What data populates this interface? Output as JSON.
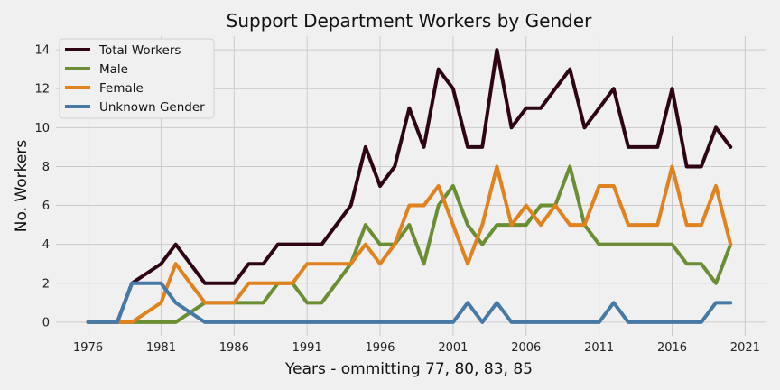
{
  "chart_data": {
    "type": "line",
    "title": "Support Department Workers by Gender",
    "xlabel": "Years - ommitting 77, 80, 83, 85",
    "ylabel": "No. Workers",
    "xlim": [
      1973.8,
      2022.4
    ],
    "ylim": [
      -0.7,
      14.7
    ],
    "x_ticks": [
      1976,
      1981,
      1986,
      1991,
      1996,
      2001,
      2006,
      2011,
      2016,
      2021
    ],
    "y_ticks": [
      0,
      2,
      4,
      6,
      8,
      10,
      12,
      14
    ],
    "grid": true,
    "legend_position": "top-left",
    "x": [
      1976,
      1977,
      1978,
      1979,
      1980,
      1981,
      1982,
      1983,
      1984,
      1985,
      1986,
      1987,
      1988,
      1989,
      1990,
      1991,
      1992,
      1993,
      1994,
      1995,
      1996,
      1997,
      1998,
      1999,
      2000,
      2001,
      2002,
      2003,
      2004,
      2005,
      2006,
      2007,
      2008,
      2009,
      2010,
      2011,
      2012,
      2013,
      2014,
      2015,
      2016,
      2017,
      2018,
      2019,
      2020
    ],
    "series": [
      {
        "name": "Total Workers",
        "color": "#2e0613",
        "values": [
          0,
          0,
          0,
          2,
          2.5,
          3,
          4,
          3,
          2,
          2,
          2,
          3,
          3,
          4,
          4,
          4,
          4,
          5,
          6,
          9,
          7,
          8,
          11,
          9,
          13,
          12,
          9,
          9,
          14,
          10,
          11,
          11,
          12,
          13,
          10,
          11,
          12,
          9,
          9,
          9,
          12,
          8,
          8,
          10,
          9
        ]
      },
      {
        "name": "Male",
        "color": "#6b8e35",
        "values": [
          0,
          0,
          0,
          0,
          0,
          0,
          0,
          0.5,
          1,
          1,
          1,
          1,
          1,
          2,
          2,
          1,
          1,
          2,
          3,
          5,
          4,
          4,
          5,
          3,
          6,
          7,
          5,
          4,
          5,
          5,
          5,
          6,
          6,
          8,
          5,
          4,
          4,
          4,
          4,
          4,
          4,
          3,
          3,
          2,
          4
        ]
      },
      {
        "name": "Female",
        "color": "#e0821e",
        "values": [
          0,
          0,
          0,
          0,
          0.5,
          1,
          3,
          2,
          1,
          1,
          1,
          2,
          2,
          2,
          2,
          3,
          3,
          3,
          3,
          4,
          3,
          4,
          6,
          6,
          7,
          5,
          3,
          5,
          8,
          5,
          6,
          5,
          6,
          5,
          5,
          7,
          7,
          5,
          5,
          5,
          8,
          5,
          5,
          7,
          4
        ]
      },
      {
        "name": "Unknown Gender",
        "color": "#4679a5",
        "values": [
          0,
          0,
          0,
          2,
          2,
          2,
          1,
          0.5,
          0,
          0,
          0,
          0,
          0,
          0,
          0,
          0,
          0,
          0,
          0,
          0,
          0,
          0,
          0,
          0,
          0,
          0,
          1,
          0,
          1,
          0,
          0,
          0,
          0,
          0,
          0,
          0,
          1,
          0,
          0,
          0,
          0,
          0,
          0,
          1,
          1
        ]
      }
    ]
  }
}
